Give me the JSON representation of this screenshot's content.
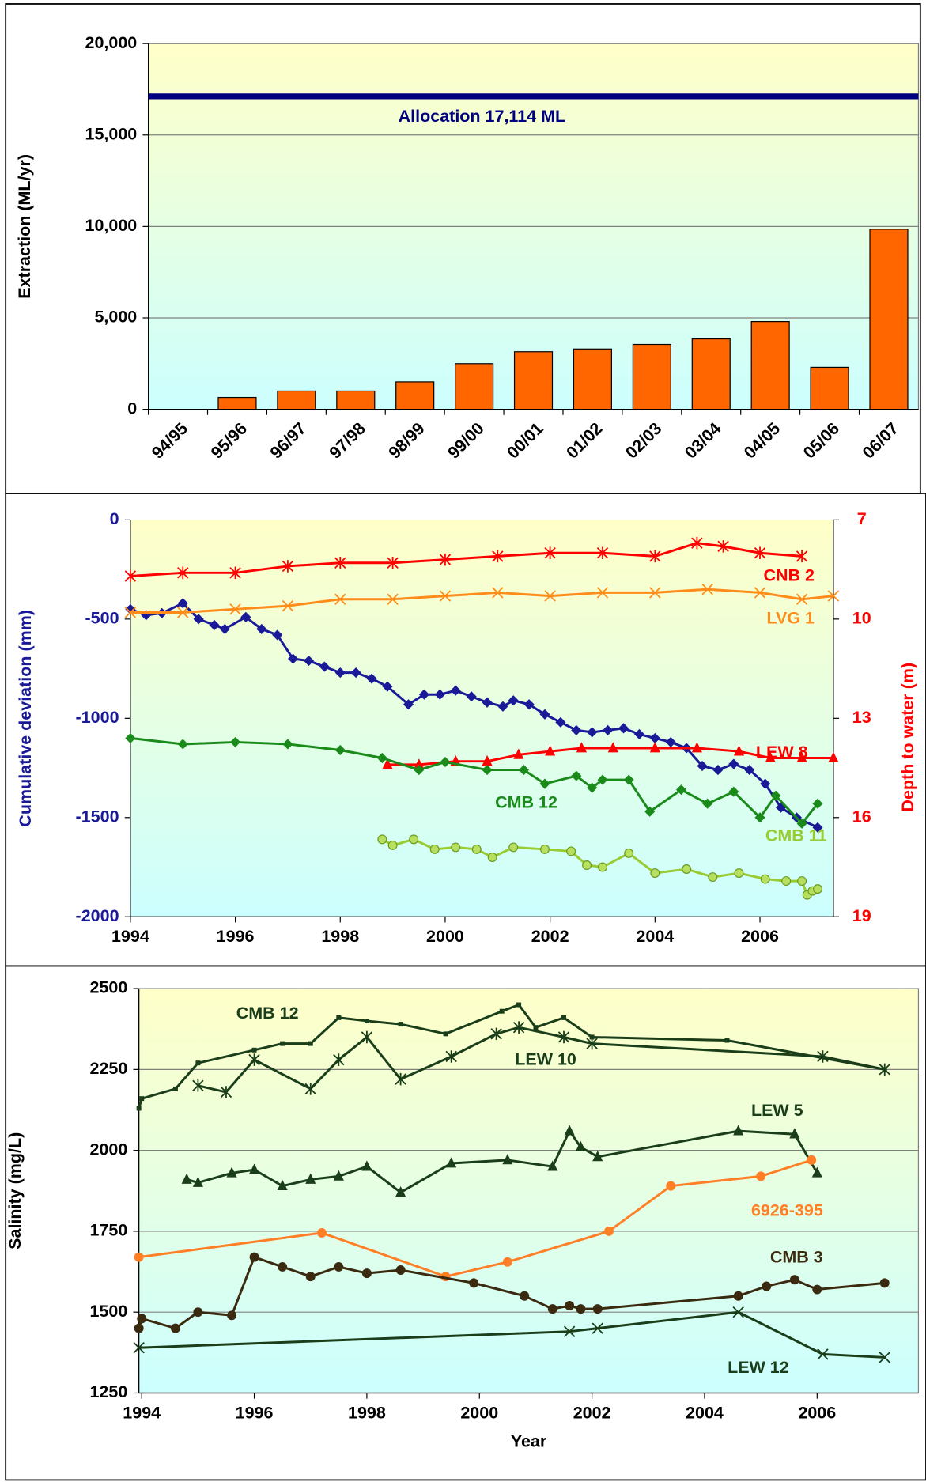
{
  "chart_data": [
    {
      "type": "bar",
      "ylabel": "Extraction (ML/yr)",
      "categories": [
        "94/95",
        "95/96",
        "96/97",
        "97/98",
        "98/99",
        "99/00",
        "00/01",
        "01/02",
        "02/03",
        "03/04",
        "04/05",
        "05/06",
        "06/07"
      ],
      "values": [
        0,
        650,
        1000,
        1000,
        1500,
        2500,
        3150,
        3300,
        3550,
        3850,
        4800,
        2300,
        9850
      ],
      "color": "#ff6600",
      "ylim": [
        0,
        20000
      ],
      "yticks": [
        0,
        {
          "value": 5000,
          "label": "5,000"
        },
        {
          "value": 10000,
          "label": "10,000"
        },
        {
          "value": 15000,
          "label": "15,000"
        },
        {
          "value": 20000,
          "label": "20,000"
        }
      ],
      "grid": true,
      "hlines": [
        {
          "value": 17114,
          "label": "Allocation  17,114 ML",
          "color": "#000080"
        }
      ]
    },
    {
      "type": "line",
      "ylabel": "Cumulative deviation (mm)",
      "y2label": "Depth to water (m)",
      "y_color": "#1a1a99",
      "y2_color": "#ff0000",
      "xlim": [
        1994,
        2007.4
      ],
      "xticks": [
        1994,
        1996,
        1998,
        2000,
        2002,
        2004,
        2006
      ],
      "ylim": [
        -2000,
        0
      ],
      "yticks": [
        0,
        -500,
        -1000,
        -1500,
        -2000
      ],
      "y2lim": [
        7,
        19
      ],
      "y2ticks": [
        7,
        10,
        13,
        16,
        19
      ],
      "y2_inverted": true,
      "grid": false,
      "series": [
        {
          "color": "#1a1a99",
          "marker": "diamond",
          "x": [
            1994,
            1994.3,
            1994.6,
            1995,
            1995.3,
            1995.6,
            1995.8,
            1996.2,
            1996.5,
            1996.8,
            1997.1,
            1997.4,
            1997.7,
            1998,
            1998.3,
            1998.6,
            1998.9,
            1999.3,
            1999.6,
            1999.9,
            2000.2,
            2000.5,
            2000.8,
            2001.1,
            2001.3,
            2001.6,
            2001.9,
            2002.2,
            2002.5,
            2002.8,
            2003.1,
            2003.4,
            2003.7,
            2004,
            2004.3,
            2004.6,
            2004.9,
            2005.2,
            2005.5,
            2005.8,
            2006.1,
            2006.4,
            2006.7,
            2007.1
          ],
          "values": [
            -450,
            -480,
            -470,
            -420,
            -500,
            -530,
            -550,
            -490,
            -550,
            -580,
            -700,
            -710,
            -740,
            -770,
            -770,
            -800,
            -840,
            -930,
            -880,
            -880,
            -860,
            -890,
            -920,
            -940,
            -910,
            -930,
            -980,
            -1020,
            -1060,
            -1070,
            -1060,
            -1050,
            -1080,
            -1100,
            -1120,
            -1150,
            -1240,
            -1260,
            -1230,
            -1260,
            -1330,
            -1450,
            -1500,
            -1550
          ]
        },
        {
          "name": "CNB 2",
          "color": "#ff0000",
          "marker": "star",
          "axis": "y2",
          "x": [
            1994,
            1995,
            1996,
            1997,
            1998,
            1999,
            2000,
            2001,
            2002,
            2003,
            2004,
            2004.8,
            2005.3,
            2006,
            2006.8
          ],
          "values": [
            8.7,
            8.6,
            8.6,
            8.4,
            8.3,
            8.3,
            8.2,
            8.1,
            8.0,
            8.0,
            8.1,
            7.7,
            7.8,
            8.0,
            8.1
          ]
        },
        {
          "name": "LVG 1",
          "color": "#ff8c1a",
          "marker": "x",
          "axis": "y2",
          "x": [
            1994,
            1995,
            1996,
            1997,
            1998,
            1999,
            2000,
            2001,
            2002,
            2003,
            2004,
            2005,
            2006,
            2006.8,
            2007.4
          ],
          "values": [
            9.8,
            9.8,
            9.7,
            9.6,
            9.4,
            9.4,
            9.3,
            9.2,
            9.3,
            9.2,
            9.2,
            9.1,
            9.2,
            9.4,
            9.3
          ]
        },
        {
          "name": "LEW 8",
          "color": "#ff0000",
          "marker": "triangle",
          "axis": "y2",
          "x": [
            1998.9,
            1999.5,
            2000.2,
            2000.8,
            2001.4,
            2002,
            2002.6,
            2003.2,
            2004,
            2004.8,
            2005.6,
            2006.2,
            2006.8,
            2007.4
          ],
          "values": [
            14.4,
            14.4,
            14.3,
            14.3,
            14.1,
            14.0,
            13.9,
            13.9,
            13.9,
            13.9,
            14.0,
            14.2,
            14.2,
            14.2
          ]
        },
        {
          "name": "CMB 12",
          "color": "#1a8a1a",
          "marker": "diamond",
          "x": [
            1994,
            1995,
            1996,
            1997,
            1998,
            1998.8,
            1999.5,
            2000,
            2000.8,
            2001.5,
            2001.9,
            2002.5,
            2002.8,
            2003,
            2003.5,
            2003.9,
            2004.5,
            2005,
            2005.5,
            2006,
            2006.3,
            2006.8,
            2007.1
          ],
          "values": [
            -1100,
            -1130,
            -1120,
            -1130,
            -1160,
            -1200,
            -1260,
            -1220,
            -1260,
            -1260,
            -1330,
            -1290,
            -1350,
            -1310,
            -1310,
            -1470,
            -1360,
            -1430,
            -1370,
            -1500,
            -1390,
            -1530,
            -1430
          ]
        },
        {
          "name": "CMB 11",
          "color": "#99cc33",
          "marker": "circle",
          "x": [
            1998.8,
            1999,
            1999.4,
            1999.8,
            2000.2,
            2000.6,
            2000.9,
            2001.3,
            2001.9,
            2002.4,
            2002.7,
            2003,
            2003.5,
            2004,
            2004.6,
            2005.1,
            2005.6,
            2006.1,
            2006.5,
            2006.8,
            2006.9,
            2007,
            2007.1
          ],
          "values": [
            -1610,
            -1640,
            -1610,
            -1660,
            -1650,
            -1660,
            -1700,
            -1650,
            -1660,
            -1670,
            -1740,
            -1750,
            -1680,
            -1780,
            -1760,
            -1800,
            -1780,
            -1810,
            -1820,
            -1820,
            -1890,
            -1870,
            -1860
          ]
        }
      ]
    },
    {
      "type": "line",
      "xlabel": "Year",
      "ylabel": "Salinity (mg/L)",
      "xlim": [
        1993.95,
        2007.8
      ],
      "xticks": [
        1994,
        1996,
        1998,
        2000,
        2002,
        2004,
        2006
      ],
      "ylim": [
        1250,
        2500
      ],
      "yticks": [
        1250,
        1500,
        1750,
        2000,
        2250,
        2500
      ],
      "grid": true,
      "series": [
        {
          "name": "CMB 12",
          "color": "#1a3d1a",
          "marker": "square",
          "x": [
            1993.95,
            1994,
            1994.6,
            1995,
            1996,
            1996.5,
            1997,
            1997.5,
            1998,
            1998.6,
            1999.4,
            2000.4,
            2000.7,
            2001,
            2001.5,
            2002,
            2004.4,
            2007.2
          ],
          "values": [
            2130,
            2160,
            2190,
            2270,
            2310,
            2330,
            2330,
            2410,
            2400,
            2390,
            2360,
            2430,
            2450,
            2380,
            2410,
            2350,
            2340,
            2250
          ]
        },
        {
          "name": "LEW 10",
          "color": "#1a3d1a",
          "marker": "star",
          "x": [
            1995,
            1995.5,
            1996,
            1997,
            1997.5,
            1998,
            1998.6,
            1999.5,
            2000.3,
            2000.7,
            2001.5,
            2002,
            2006.1,
            2007.2
          ],
          "values": [
            2200,
            2180,
            2280,
            2190,
            2280,
            2350,
            2220,
            2290,
            2360,
            2380,
            2350,
            2330,
            2290,
            2250
          ]
        },
        {
          "name": "LEW 5",
          "color": "#1a3d1a",
          "marker": "triangle",
          "x": [
            1994.8,
            1995,
            1995.6,
            1996,
            1996.5,
            1997,
            1997.5,
            1998,
            1998.6,
            1999.5,
            2000.5,
            2001.3,
            2001.6,
            2001.8,
            2002.1,
            2004.6,
            2005.6,
            2006
          ],
          "values": [
            1910,
            1900,
            1930,
            1940,
            1890,
            1910,
            1920,
            1950,
            1870,
            1960,
            1970,
            1950,
            2060,
            2010,
            1980,
            2060,
            2050,
            1930
          ]
        },
        {
          "name": "6926-395",
          "color": "#ff7f27",
          "marker": "circle",
          "x": [
            1993.95,
            1997.2,
            1999.4,
            2000.5,
            2002.3,
            2003.4,
            2005,
            2005.9
          ],
          "values": [
            1670,
            1745,
            1610,
            1655,
            1750,
            1890,
            1920,
            1970
          ]
        },
        {
          "name": "CMB 3",
          "color": "#3a2a10",
          "marker": "circle",
          "x": [
            1993.95,
            1994,
            1994.6,
            1995,
            1995.6,
            1996,
            1996.5,
            1997,
            1997.5,
            1998,
            1998.6,
            1999.9,
            2000.8,
            2001.3,
            2001.6,
            2001.8,
            2002.1,
            2004.6,
            2005.1,
            2005.6,
            2006,
            2007.2
          ],
          "values": [
            1450,
            1480,
            1450,
            1500,
            1490,
            1670,
            1640,
            1610,
            1640,
            1620,
            1630,
            1590,
            1550,
            1510,
            1520,
            1510,
            1510,
            1550,
            1580,
            1600,
            1570,
            1590
          ]
        },
        {
          "name": "LEW 12",
          "color": "#1a3d1a",
          "marker": "x",
          "x": [
            1993.95,
            2001.6,
            2002.1,
            2004.6,
            2006.1,
            2007.2
          ],
          "values": [
            1390,
            1440,
            1450,
            1500,
            1370,
            1360
          ]
        }
      ]
    }
  ]
}
